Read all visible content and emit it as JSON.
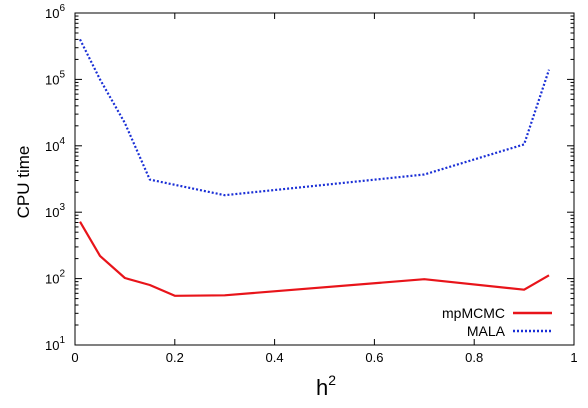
{
  "chart_data": {
    "type": "line",
    "title": "",
    "xlabel": "h",
    "xlabel_superscript": "2",
    "ylabel": "CPU time",
    "xlim": [
      0,
      1
    ],
    "ylim": [
      10,
      1000000
    ],
    "yscale": "log",
    "grid": false,
    "legend_position": "bottom-right",
    "x_ticks": [
      {
        "value": 0,
        "label": "0"
      },
      {
        "value": 0.2,
        "label": "0.2"
      },
      {
        "value": 0.4,
        "label": "0.4"
      },
      {
        "value": 0.6,
        "label": "0.6"
      },
      {
        "value": 0.8,
        "label": "0.8"
      },
      {
        "value": 1,
        "label": "1"
      }
    ],
    "y_ticks": [
      {
        "value": 10,
        "base": "10",
        "exp": "1"
      },
      {
        "value": 100,
        "base": "10",
        "exp": "2"
      },
      {
        "value": 1000,
        "base": "10",
        "exp": "3"
      },
      {
        "value": 10000,
        "base": "10",
        "exp": "4"
      },
      {
        "value": 100000,
        "base": "10",
        "exp": "5"
      },
      {
        "value": 1000000,
        "base": "10",
        "exp": "6"
      }
    ],
    "series": [
      {
        "name": "mpMCMC",
        "color": "#e8141a",
        "style": "solid",
        "x": [
          0.01,
          0.05,
          0.1,
          0.15,
          0.2,
          0.3,
          0.7,
          0.9,
          0.95
        ],
        "y": [
          720,
          220,
          102,
          80,
          55,
          56,
          98,
          68,
          112
        ]
      },
      {
        "name": "MALA",
        "color": "#1a2fd6",
        "style": "dotted",
        "x": [
          0.01,
          0.05,
          0.1,
          0.15,
          0.3,
          0.7,
          0.9,
          0.95
        ],
        "y": [
          400000,
          100000,
          22000,
          3100,
          1800,
          3700,
          10500,
          140000
        ]
      }
    ]
  }
}
